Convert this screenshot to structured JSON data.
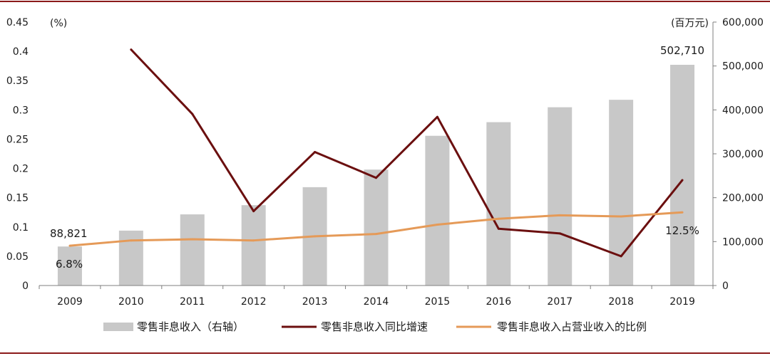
{
  "chart_data": {
    "type": "bar",
    "categories": [
      "2009",
      "2010",
      "2011",
      "2012",
      "2013",
      "2014",
      "2015",
      "2016",
      "2017",
      "2018",
      "2019"
    ],
    "series": [
      {
        "name": "零售非息收入（右轴）",
        "type": "bar",
        "axis": "right",
        "color": "#c8c8c8",
        "values": [
          88821,
          125000,
          162000,
          183000,
          224000,
          264000,
          341000,
          372000,
          406000,
          423000,
          502710
        ]
      },
      {
        "name": "零售非息收入同比增速",
        "type": "line",
        "axis": "left",
        "color": "#6b0f0f",
        "values": [
          null,
          0.403,
          0.293,
          0.127,
          0.228,
          0.184,
          0.288,
          0.097,
          0.089,
          0.05,
          0.18
        ]
      },
      {
        "name": "零售非息收入占营业收入的比例",
        "type": "line",
        "axis": "left",
        "color": "#e59a58",
        "values": [
          0.068,
          0.077,
          0.079,
          0.077,
          0.084,
          0.088,
          0.104,
          0.114,
          0.12,
          0.118,
          0.125
        ]
      }
    ],
    "left_axis": {
      "unit": "(%)",
      "ylim": [
        0,
        0.45
      ],
      "ticks": [
        "0",
        "0.05",
        "0.1",
        "0.15",
        "0.2",
        "0.25",
        "0.3",
        "0.35",
        "0.4",
        "0.45"
      ]
    },
    "right_axis": {
      "unit": "(百万元)",
      "ylim": [
        0,
        600000
      ],
      "ticks": [
        "0",
        "100,000",
        "200,000",
        "300,000",
        "400,000",
        "500,000",
        "600,000"
      ]
    },
    "annotations": {
      "first_bar_value": "88,821",
      "first_ratio": "6.8%",
      "last_bar_value": "502,710",
      "last_ratio": "12.5%"
    },
    "legend_position": "bottom",
    "grid": false,
    "frame_color": "#8b1a1a"
  }
}
